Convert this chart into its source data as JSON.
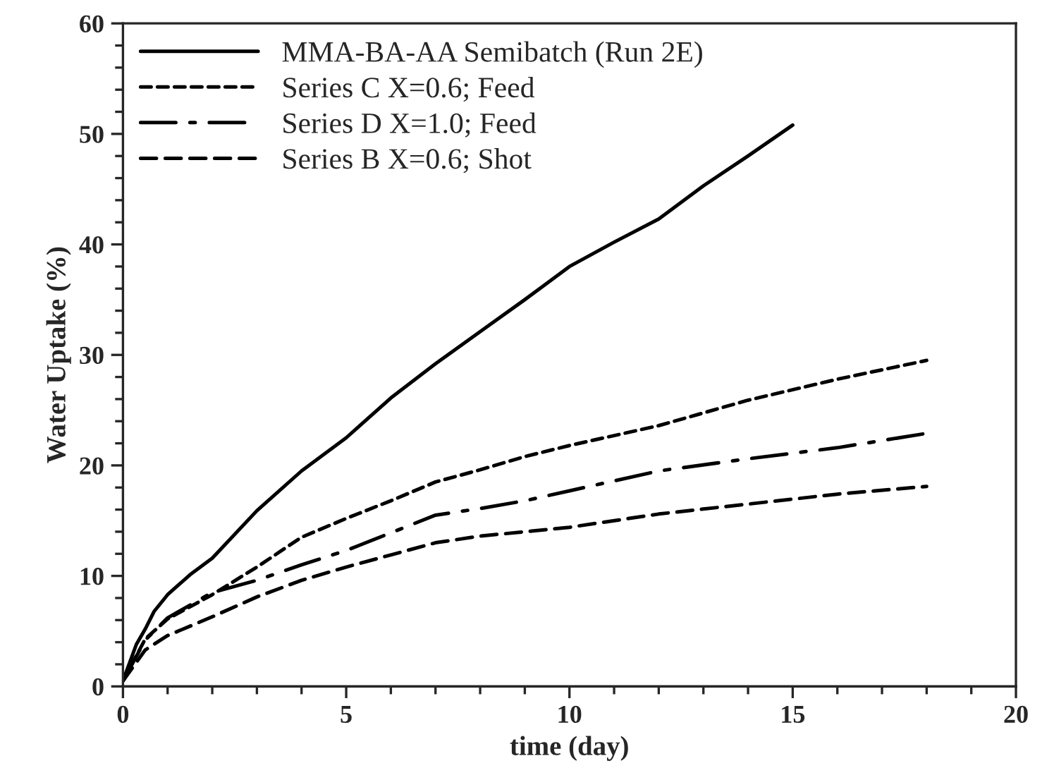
{
  "chart_data": {
    "type": "line",
    "xlabel": "time (day)",
    "ylabel": "Water Uptake (%)",
    "xlim": [
      0,
      20
    ],
    "xticks": [
      0,
      5,
      10,
      15,
      20
    ],
    "ylim": [
      0,
      60
    ],
    "yticks": [
      0,
      10,
      20,
      30,
      40,
      50,
      60
    ],
    "grid": false,
    "legend": "top left",
    "marker": "none",
    "series": [
      {
        "name": "MMA-BA-AA Semibatch (Run 2E)",
        "color": "#000000",
        "line_style": "solid",
        "x": [
          0,
          0.3,
          0.5,
          0.7,
          1,
          1.5,
          2,
          3,
          4,
          5,
          6,
          7,
          8,
          9,
          10,
          11,
          12,
          13,
          14,
          15
        ],
        "values": [
          0.5,
          3.8,
          5.2,
          6.8,
          8.3,
          10.1,
          11.6,
          15.9,
          19.5,
          22.5,
          26.1,
          29.2,
          32.1,
          35,
          38,
          40.2,
          42.3,
          45.3,
          48,
          50.8
        ]
      },
      {
        "name": "Series C X=0.6; Feed",
        "color": "#000000",
        "line_style": "dotted",
        "x": [
          0,
          0.5,
          1,
          2,
          3,
          4,
          5,
          6,
          7,
          8,
          9,
          10,
          12,
          14,
          16,
          18
        ],
        "values": [
          0.5,
          4.3,
          6.1,
          8.3,
          10.8,
          13.5,
          15.2,
          16.8,
          18.5,
          19.6,
          20.8,
          21.8,
          23.6,
          25.9,
          27.8,
          29.5
        ]
      },
      {
        "name": "Series D X=1.0; Feed",
        "color": "#000000",
        "line_style": "dashdot",
        "x": [
          0,
          0.5,
          1,
          2,
          3,
          4,
          5,
          6,
          7,
          8,
          9,
          10,
          12,
          14,
          16,
          18
        ],
        "values": [
          0.5,
          4.2,
          6.2,
          8.5,
          9.6,
          11,
          12.3,
          13.9,
          15.5,
          16.1,
          16.8,
          17.7,
          19.5,
          20.6,
          21.6,
          22.9
        ]
      },
      {
        "name": "Series B X=0.6; Shot",
        "color": "#000000",
        "line_style": "dashed",
        "x": [
          0,
          0.5,
          1,
          2,
          3,
          4,
          5,
          6,
          7,
          8,
          10,
          12,
          14,
          16,
          18
        ],
        "values": [
          0.5,
          3.3,
          4.6,
          6.3,
          8.1,
          9.6,
          10.8,
          11.9,
          13,
          13.6,
          14.4,
          15.6,
          16.5,
          17.4,
          18.1
        ]
      }
    ]
  }
}
